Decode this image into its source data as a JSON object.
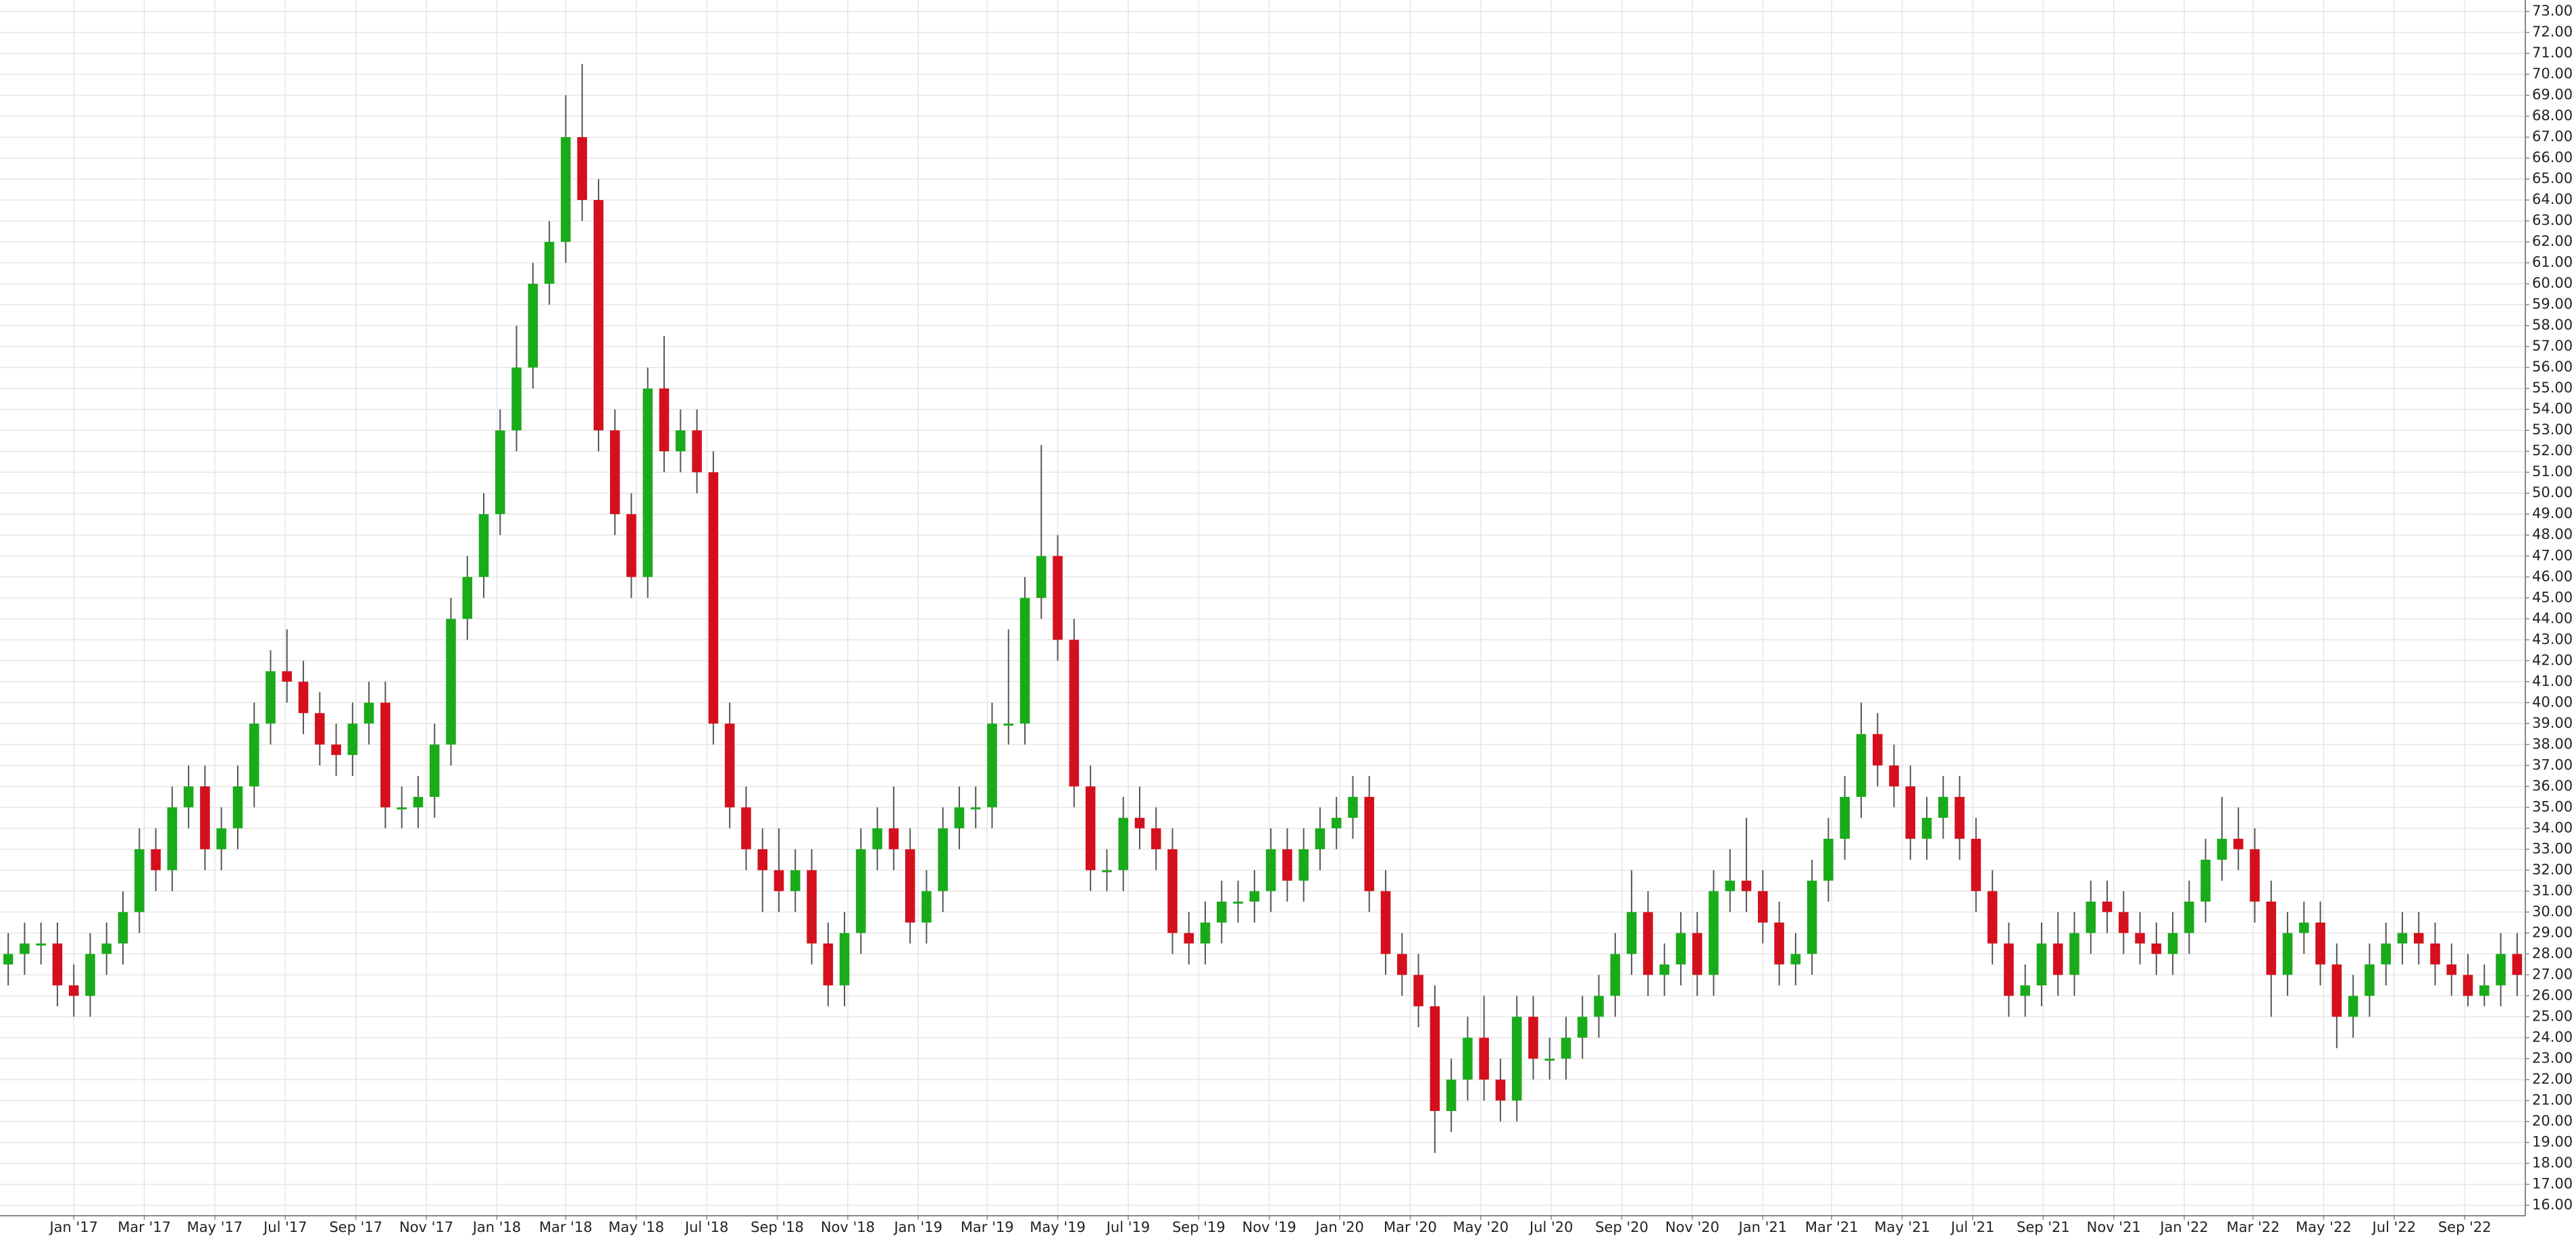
{
  "chart_data": {
    "type": "candlestick",
    "open": [
      27.5,
      28,
      28.5,
      28.5,
      26.5,
      26,
      28,
      28.5,
      30,
      33,
      32,
      35,
      36,
      33,
      34,
      36,
      39,
      41.5,
      41,
      39.5,
      38,
      37.5,
      39,
      40,
      35,
      35,
      35.5,
      38,
      44,
      46,
      49,
      53,
      56,
      60,
      62,
      67,
      64,
      53,
      49,
      46,
      55,
      52,
      53,
      51,
      39,
      35,
      33,
      32,
      31,
      32,
      28.5,
      26.5,
      29,
      33,
      34,
      33,
      29.5,
      31,
      34,
      35,
      35,
      39,
      39,
      45,
      47,
      43,
      36,
      32,
      32,
      34.5,
      34,
      33,
      29,
      28.5,
      29.5,
      30.5,
      30.5,
      31,
      33,
      31.5,
      33,
      34,
      34.5,
      35.5,
      31,
      28,
      27,
      25.5,
      20.5,
      22,
      24,
      22,
      21,
      25,
      23,
      23,
      24,
      25,
      26,
      28,
      30,
      27,
      27.5,
      29,
      27,
      31,
      31.5,
      31,
      29.5,
      27.5,
      28,
      31.5,
      33.5,
      35.5,
      38.5,
      37,
      36,
      33.5,
      34.5,
      35.5,
      33.5,
      31,
      28.5,
      26,
      26.5,
      28.5,
      27,
      29,
      30.5,
      30,
      29,
      28.5,
      28,
      29,
      30.5,
      32.5,
      33.5,
      33,
      30.5,
      27,
      29,
      29.5,
      27.5,
      25,
      26,
      27.5,
      28.5,
      29,
      28.5,
      27.5,
      27,
      26,
      26.5,
      28
    ],
    "high": [
      29,
      29.5,
      29.5,
      29.5,
      27.5,
      29,
      29.5,
      31,
      34,
      34,
      36,
      37,
      37,
      35,
      37,
      40,
      42.5,
      43.5,
      42,
      40.5,
      39,
      40,
      41,
      41,
      36,
      36.5,
      39,
      45,
      47,
      50,
      54,
      58,
      61,
      63,
      69,
      70.5,
      65,
      54,
      50,
      56,
      57.5,
      54,
      54,
      52,
      40,
      36,
      34,
      34,
      33,
      33,
      29.5,
      30,
      34,
      35,
      36,
      34,
      32,
      35,
      36,
      36,
      40,
      43.5,
      46,
      52.3,
      48,
      44,
      37,
      33,
      35.5,
      36,
      35,
      34,
      30,
      30.5,
      31.5,
      31.5,
      32,
      34,
      34,
      34,
      35,
      35.5,
      36.5,
      36.5,
      32,
      29,
      28,
      26.5,
      23,
      25,
      26,
      23,
      26,
      26,
      24,
      25,
      26,
      27,
      29,
      32,
      31,
      28.5,
      30,
      30,
      32,
      33,
      34.5,
      32,
      30.5,
      29,
      32.5,
      34.5,
      36.5,
      40,
      39.5,
      38,
      37,
      35.5,
      36.5,
      36.5,
      34.5,
      32,
      29.5,
      27.5,
      29.5,
      30,
      30,
      31.5,
      31.5,
      31,
      30,
      29.5,
      30,
      31.5,
      33.5,
      35.5,
      35,
      34,
      31.5,
      30,
      30.5,
      30.5,
      28.5,
      27,
      28.5,
      29.5,
      30,
      30,
      29.5,
      28.5,
      28,
      27.5,
      29,
      29
    ],
    "low": [
      26.5,
      27,
      27.5,
      25.5,
      25,
      25,
      27,
      27.5,
      29,
      31,
      31,
      34,
      32,
      32,
      33,
      35,
      38,
      40,
      38.5,
      37,
      36.5,
      36.5,
      38,
      34,
      34,
      34,
      34.5,
      37,
      43,
      45,
      48,
      52,
      55,
      59,
      61,
      63,
      52,
      48,
      45,
      45,
      51,
      51,
      50,
      38,
      34,
      32,
      30,
      30,
      30,
      27.5,
      25.5,
      25.5,
      28,
      32,
      32,
      28.5,
      28.5,
      30,
      33,
      34,
      34,
      38,
      38,
      44,
      42,
      35,
      31,
      31,
      31,
      33,
      32,
      28,
      27.5,
      27.5,
      28.5,
      29.5,
      29.5,
      30,
      30.5,
      30.5,
      32,
      33,
      33.5,
      30,
      27,
      26,
      24.5,
      18.5,
      19.5,
      21,
      21,
      20,
      20,
      22,
      22,
      22,
      23,
      24,
      25,
      27,
      26,
      26,
      26.5,
      26,
      26,
      30,
      30,
      28.5,
      26.5,
      26.5,
      27,
      30.5,
      32.5,
      34.5,
      36,
      35,
      32.5,
      32.5,
      33.5,
      32.5,
      30,
      27.5,
      25,
      25,
      25.5,
      26,
      26,
      28,
      29,
      28,
      27.5,
      27,
      27,
      28,
      29.5,
      31.5,
      32,
      29.5,
      25,
      26,
      28,
      26.5,
      23.5,
      24,
      25,
      26.5,
      27.5,
      27.5,
      26.5,
      26,
      25.5,
      25.5,
      25.5,
      26
    ],
    "close": [
      28,
      28.5,
      28.5,
      26.5,
      26,
      28,
      28.5,
      30,
      33,
      32,
      35,
      36,
      33,
      34,
      36,
      39,
      41.5,
      41,
      39.5,
      38,
      37.5,
      39,
      40,
      35,
      35,
      35.5,
      38,
      44,
      46,
      49,
      53,
      56,
      60,
      62,
      67,
      64,
      53,
      49,
      46,
      55,
      52,
      53,
      51,
      39,
      35,
      33,
      32,
      31,
      32,
      28.5,
      26.5,
      29,
      33,
      34,
      33,
      29.5,
      31,
      34,
      35,
      35,
      39,
      39,
      45,
      47,
      43,
      36,
      32,
      32,
      34.5,
      34,
      33,
      29,
      28.5,
      29.5,
      30.5,
      30.5,
      31,
      33,
      31.5,
      33,
      34,
      34.5,
      35.5,
      31,
      28,
      27,
      25.5,
      20.5,
      22,
      24,
      22,
      21,
      25,
      23,
      23,
      24,
      25,
      26,
      28,
      30,
      27,
      27.5,
      29,
      27,
      31,
      31.5,
      31,
      29.5,
      27.5,
      28,
      31.5,
      33.5,
      35.5,
      38.5,
      37,
      36,
      33.5,
      34.5,
      35.5,
      33.5,
      31,
      28.5,
      26,
      26.5,
      28.5,
      27,
      29,
      30.5,
      30,
      29,
      28.5,
      28,
      29,
      30.5,
      32.5,
      33.5,
      33,
      30.5,
      27,
      29,
      29.5,
      27.5,
      25,
      26,
      27.5,
      28.5,
      29,
      28.5,
      27.5,
      27,
      26,
      26.5,
      28,
      27
    ],
    "up_color": "#1aab1a",
    "down_color": "#d4101c",
    "grid": true,
    "xlim": [
      -0.5,
      153.5
    ],
    "xticks": [
      {
        "value": 4,
        "label": "Jan '17"
      },
      {
        "value": 8.3,
        "label": "Mar '17"
      },
      {
        "value": 12.6,
        "label": "May '17"
      },
      {
        "value": 16.9,
        "label": "Jul '17"
      },
      {
        "value": 21.2,
        "label": "Sep '17"
      },
      {
        "value": 25.5,
        "label": "Nov '17"
      },
      {
        "value": 29.8,
        "label": "Jan '18"
      },
      {
        "value": 34,
        "label": "Mar '18"
      },
      {
        "value": 38.3,
        "label": "May '18"
      },
      {
        "value": 42.6,
        "label": "Jul '18"
      },
      {
        "value": 46.9,
        "label": "Sep '18"
      },
      {
        "value": 51.2,
        "label": "Nov '18"
      },
      {
        "value": 55.5,
        "label": "Jan '19"
      },
      {
        "value": 59.7,
        "label": "Mar '19"
      },
      {
        "value": 64,
        "label": "May '19"
      },
      {
        "value": 68.3,
        "label": "Jul '19"
      },
      {
        "value": 72.6,
        "label": "Sep '19"
      },
      {
        "value": 76.9,
        "label": "Nov '19"
      },
      {
        "value": 81.2,
        "label": "Jan '20"
      },
      {
        "value": 85.5,
        "label": "Mar '20"
      },
      {
        "value": 89.8,
        "label": "May '20"
      },
      {
        "value": 94.1,
        "label": "Jul '20"
      },
      {
        "value": 98.4,
        "label": "Sep '20"
      },
      {
        "value": 102.7,
        "label": "Nov '20"
      },
      {
        "value": 107,
        "label": "Jan '21"
      },
      {
        "value": 111.2,
        "label": "Mar '21"
      },
      {
        "value": 115.5,
        "label": "May '21"
      },
      {
        "value": 119.8,
        "label": "Jul '21"
      },
      {
        "value": 124.1,
        "label": "Sep '21"
      },
      {
        "value": 128.4,
        "label": "Nov '21"
      },
      {
        "value": 132.7,
        "label": "Jan '22"
      },
      {
        "value": 136.9,
        "label": "Mar '22"
      },
      {
        "value": 141.2,
        "label": "May '22"
      },
      {
        "value": 145.5,
        "label": "Jul '22"
      },
      {
        "value": 149.8,
        "label": "Sep '22"
      }
    ],
    "ylim": [
      15.5,
      73.55
    ],
    "yticks": [
      {
        "value": 16,
        "label": "16.00"
      },
      {
        "value": 17,
        "label": "17.00"
      },
      {
        "value": 18,
        "label": "18.00"
      },
      {
        "value": 19,
        "label": "19.00"
      },
      {
        "value": 20,
        "label": "20.00"
      },
      {
        "value": 21,
        "label": "21.00"
      },
      {
        "value": 22,
        "label": "22.00"
      },
      {
        "value": 23,
        "label": "23.00"
      },
      {
        "value": 24,
        "label": "24.00"
      },
      {
        "value": 25,
        "label": "25.00"
      },
      {
        "value": 26,
        "label": "26.00"
      },
      {
        "value": 27,
        "label": "27.00"
      },
      {
        "value": 28,
        "label": "28.00"
      },
      {
        "value": 29,
        "label": "29.00"
      },
      {
        "value": 30,
        "label": "30.00"
      },
      {
        "value": 31,
        "label": "31.00"
      },
      {
        "value": 32,
        "label": "32.00"
      },
      {
        "value": 33,
        "label": "33.00"
      },
      {
        "value": 34,
        "label": "34.00"
      },
      {
        "value": 35,
        "label": "35.00"
      },
      {
        "value": 36,
        "label": "36.00"
      },
      {
        "value": 37,
        "label": "37.00"
      },
      {
        "value": 38,
        "label": "38.00"
      },
      {
        "value": 39,
        "label": "39.00"
      },
      {
        "value": 40,
        "label": "40.00"
      },
      {
        "value": 41,
        "label": "41.00"
      },
      {
        "value": 42,
        "label": "42.00"
      },
      {
        "value": 43,
        "label": "43.00"
      },
      {
        "value": 44,
        "label": "44.00"
      },
      {
        "value": 45,
        "label": "45.00"
      },
      {
        "value": 46,
        "label": "46.00"
      },
      {
        "value": 47,
        "label": "47.00"
      },
      {
        "value": 48,
        "label": "48.00"
      },
      {
        "value": 49,
        "label": "49.00"
      },
      {
        "value": 50,
        "label": "50.00"
      },
      {
        "value": 51,
        "label": "51.00"
      },
      {
        "value": 52,
        "label": "52.00"
      },
      {
        "value": 53,
        "label": "53.00"
      },
      {
        "value": 54,
        "label": "54.00"
      },
      {
        "value": 55,
        "label": "55.00"
      },
      {
        "value": 56,
        "label": "56.00"
      },
      {
        "value": 57,
        "label": "57.00"
      },
      {
        "value": 58,
        "label": "58.00"
      },
      {
        "value": 59,
        "label": "59.00"
      },
      {
        "value": 60,
        "label": "60.00"
      },
      {
        "value": 61,
        "label": "61.00"
      },
      {
        "value": 62,
        "label": "62.00"
      },
      {
        "value": 63,
        "label": "63.00"
      },
      {
        "value": 64,
        "label": "64.00"
      },
      {
        "value": 65,
        "label": "65.00"
      },
      {
        "value": 66,
        "label": "66.00"
      },
      {
        "value": 67,
        "label": "67.00"
      },
      {
        "value": 68,
        "label": "68.00"
      },
      {
        "value": 69,
        "label": "69.00"
      },
      {
        "value": 70,
        "label": "70.00"
      },
      {
        "value": 71,
        "label": "71.00"
      },
      {
        "value": 72,
        "label": "72.00"
      },
      {
        "value": 73,
        "label": "73.00"
      }
    ]
  }
}
